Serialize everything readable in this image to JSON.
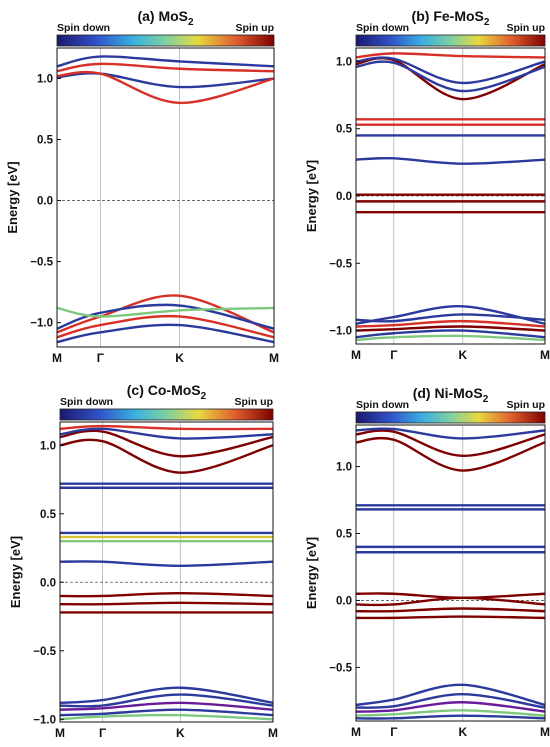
{
  "chart_data": [
    {
      "type": "line",
      "panel_label": "(a)",
      "title": "MoS2",
      "title_main": "MoS",
      "title_sub": "2",
      "colorbar": {
        "left_label": "Spin down",
        "right_label": "Spin up"
      },
      "ylabel": "Energy [eV]",
      "xticks": [
        "M",
        "Γ",
        "K",
        "M"
      ],
      "ylim": [
        -1.2,
        1.25
      ],
      "yticks": [
        1.0,
        0.5,
        0.0,
        -0.5,
        -1.0
      ],
      "ytick_labels": [
        "1.0",
        "0.5",
        "0.0",
        "−0.5",
        "−1.0"
      ],
      "fermi_level": 0.0,
      "bands": [
        {
          "color": "#2b3a9c",
          "values": [
            1.01,
            1.04,
            0.93,
            1.0
          ]
        },
        {
          "color": "#d73027",
          "values": [
            1.02,
            1.04,
            0.8,
            1.0
          ]
        },
        {
          "color": "#d73027",
          "values": [
            1.06,
            1.12,
            1.08,
            1.06
          ]
        },
        {
          "color": "#2b3a9c",
          "values": [
            1.1,
            1.18,
            1.14,
            1.1
          ]
        },
        {
          "color": "#d73027",
          "values": [
            -1.08,
            -0.95,
            -0.78,
            -1.08
          ]
        },
        {
          "color": "#2b3a9c",
          "values": [
            -1.05,
            -0.92,
            -0.86,
            -1.05
          ]
        },
        {
          "color": "#d73027",
          "values": [
            -1.12,
            -1.02,
            -0.95,
            -1.12
          ]
        },
        {
          "color": "#2b3a9c",
          "values": [
            -1.16,
            -1.08,
            -1.02,
            -1.16
          ]
        },
        {
          "color": "#7fc97f",
          "values": [
            -0.88,
            -0.95,
            -0.9,
            -0.88
          ]
        }
      ]
    },
    {
      "type": "line",
      "panel_label": "(b)",
      "title": "Fe-MoS2",
      "title_main": "Fe-MoS",
      "title_sub": "2",
      "colorbar": {
        "left_label": "Spin down",
        "right_label": "Spin up"
      },
      "ylabel": "Energy [eV]",
      "xticks": [
        "M",
        "Γ",
        "K",
        "M"
      ],
      "ylim": [
        -1.1,
        1.1
      ],
      "yticks": [
        1.0,
        0.5,
        0.0,
        -0.5,
        -1.0
      ],
      "ytick_labels": [
        "1.0",
        "0.5",
        "0.0",
        "−0.5",
        "−1.0"
      ],
      "fermi_level": 0.0,
      "bands": [
        {
          "color": "#7f0000",
          "values": [
            0.98,
            1.01,
            0.72,
            0.98
          ]
        },
        {
          "color": "#2b3a9c",
          "values": [
            1.0,
            1.02,
            0.84,
            1.0
          ]
        },
        {
          "color": "#d73027",
          "values": [
            1.03,
            1.06,
            1.04,
            1.03
          ]
        },
        {
          "color": "#2b3a9c",
          "values": [
            0.96,
            0.99,
            0.78,
            0.96
          ]
        },
        {
          "color": "#d73027",
          "values": [
            0.57,
            0.57,
            0.57,
            0.57
          ]
        },
        {
          "color": "#d73027",
          "values": [
            0.53,
            0.53,
            0.53,
            0.53
          ]
        },
        {
          "color": "#2b3a9c",
          "values": [
            0.45,
            0.45,
            0.45,
            0.45
          ]
        },
        {
          "color": "#2b3a9c",
          "values": [
            0.27,
            0.28,
            0.24,
            0.27
          ]
        },
        {
          "color": "#7f0000",
          "values": [
            0.01,
            0.01,
            0.01,
            0.01
          ]
        },
        {
          "color": "#7f0000",
          "values": [
            -0.04,
            -0.04,
            -0.04,
            -0.04
          ]
        },
        {
          "color": "#7f0000",
          "values": [
            -0.12,
            -0.12,
            -0.12,
            -0.12
          ]
        },
        {
          "color": "#2b3a9c",
          "values": [
            -0.95,
            -0.9,
            -0.82,
            -0.95
          ]
        },
        {
          "color": "#2b3a9c",
          "values": [
            -0.92,
            -0.93,
            -0.88,
            -0.92
          ]
        },
        {
          "color": "#d73027",
          "values": [
            -0.97,
            -0.96,
            -0.93,
            -0.97
          ]
        },
        {
          "color": "#7f0000",
          "values": [
            -1.0,
            -0.99,
            -0.97,
            -1.0
          ]
        },
        {
          "color": "#2b3a9c",
          "values": [
            -1.05,
            -1.02,
            -1.0,
            -1.05
          ]
        },
        {
          "color": "#7fc97f",
          "values": [
            -1.07,
            -1.05,
            -1.04,
            -1.07
          ]
        }
      ]
    },
    {
      "type": "line",
      "panel_label": "(c)",
      "title": "Co-MoS2",
      "title_main": "Co-MoS",
      "title_sub": "2",
      "colorbar": {
        "left_label": "Spin down",
        "right_label": "Spin up"
      },
      "ylabel": "Energy [eV]",
      "xticks": [
        "M",
        "Γ",
        "K",
        "M"
      ],
      "ylim": [
        -1.02,
        1.17
      ],
      "yticks": [
        1.0,
        0.5,
        0.0,
        -0.5,
        -1.0
      ],
      "ytick_labels": [
        "1.0",
        "0.5",
        "0.0",
        "−0.5",
        "−1.0"
      ],
      "fermi_level": 0.0,
      "bands": [
        {
          "color": "#7f0000",
          "values": [
            1.0,
            1.03,
            0.8,
            1.0
          ]
        },
        {
          "color": "#7f0000",
          "values": [
            1.06,
            1.1,
            0.92,
            1.06
          ]
        },
        {
          "color": "#2b3a9c",
          "values": [
            1.08,
            1.12,
            1.05,
            1.08
          ]
        },
        {
          "color": "#d73027",
          "values": [
            1.12,
            1.14,
            1.12,
            1.12
          ]
        },
        {
          "color": "#2b3a9c",
          "values": [
            0.72,
            0.72,
            0.72,
            0.72
          ]
        },
        {
          "color": "#2b3a9c",
          "values": [
            0.69,
            0.69,
            0.69,
            0.69
          ]
        },
        {
          "color": "#2b3a9c",
          "values": [
            0.36,
            0.36,
            0.36,
            0.36
          ]
        },
        {
          "color": "#d7c43a",
          "values": [
            0.33,
            0.33,
            0.33,
            0.33
          ]
        },
        {
          "color": "#7fc97f",
          "values": [
            0.3,
            0.3,
            0.3,
            0.3
          ]
        },
        {
          "color": "#2b3a9c",
          "values": [
            0.15,
            0.15,
            0.12,
            0.15
          ]
        },
        {
          "color": "#7f0000",
          "values": [
            -0.1,
            -0.1,
            -0.08,
            -0.1
          ]
        },
        {
          "color": "#7f0000",
          "values": [
            -0.16,
            -0.16,
            -0.15,
            -0.16
          ]
        },
        {
          "color": "#7f0000",
          "values": [
            -0.22,
            -0.22,
            -0.22,
            -0.22
          ]
        },
        {
          "color": "#2b3a9c",
          "values": [
            -0.88,
            -0.86,
            -0.77,
            -0.88
          ]
        },
        {
          "color": "#2b3a9c",
          "values": [
            -0.9,
            -0.9,
            -0.82,
            -0.9
          ]
        },
        {
          "color": "#6a1b9a",
          "values": [
            -0.93,
            -0.92,
            -0.88,
            -0.93
          ]
        },
        {
          "color": "#2b3a9c",
          "values": [
            -0.97,
            -0.96,
            -0.93,
            -0.97
          ]
        },
        {
          "color": "#7fc97f",
          "values": [
            -1.0,
            -0.98,
            -0.97,
            -1.0
          ]
        }
      ]
    },
    {
      "type": "line",
      "panel_label": "(d)",
      "title": "Ni-MoS2",
      "title_main": "Ni-MoS",
      "title_sub": "2",
      "colorbar": {
        "left_label": "Spin down",
        "right_label": "Spin up"
      },
      "ylabel": "Energy [eV]",
      "xticks": [
        "M",
        "Γ",
        "K",
        "M"
      ],
      "ylim": [
        -0.9,
        1.31
      ],
      "yticks": [
        1.0,
        0.5,
        0.0,
        -0.5
      ],
      "ytick_labels": [
        "1.0",
        "0.5",
        "0.0",
        "−0.5"
      ],
      "fermi_level": 0.0,
      "bands": [
        {
          "color": "#7f0000",
          "values": [
            1.18,
            1.2,
            0.97,
            1.18
          ]
        },
        {
          "color": "#7f0000",
          "values": [
            1.24,
            1.26,
            1.08,
            1.24
          ]
        },
        {
          "color": "#2b3a9c",
          "values": [
            1.27,
            1.28,
            1.21,
            1.27
          ]
        },
        {
          "color": "#2b3a9c",
          "values": [
            0.71,
            0.71,
            0.71,
            0.71
          ]
        },
        {
          "color": "#2b3a9c",
          "values": [
            0.68,
            0.68,
            0.68,
            0.68
          ]
        },
        {
          "color": "#2b3a9c",
          "values": [
            0.4,
            0.4,
            0.4,
            0.4
          ]
        },
        {
          "color": "#2b3a9c",
          "values": [
            0.36,
            0.36,
            0.36,
            0.36
          ]
        },
        {
          "color": "#7f0000",
          "values": [
            0.05,
            0.05,
            0.02,
            0.05
          ]
        },
        {
          "color": "#7f0000",
          "values": [
            -0.03,
            -0.03,
            0.02,
            -0.03
          ]
        },
        {
          "color": "#7f0000",
          "values": [
            -0.08,
            -0.08,
            -0.06,
            -0.08
          ]
        },
        {
          "color": "#7f0000",
          "values": [
            -0.13,
            -0.13,
            -0.12,
            -0.13
          ]
        },
        {
          "color": "#2b3a9c",
          "values": [
            -0.78,
            -0.74,
            -0.63,
            -0.78
          ]
        },
        {
          "color": "#2b3a9c",
          "values": [
            -0.8,
            -0.79,
            -0.7,
            -0.8
          ]
        },
        {
          "color": "#6a1b9a",
          "values": [
            -0.83,
            -0.82,
            -0.76,
            -0.83
          ]
        },
        {
          "color": "#7fc97f",
          "values": [
            -0.86,
            -0.85,
            -0.82,
            -0.86
          ]
        },
        {
          "color": "#2b3a9c",
          "values": [
            -0.88,
            -0.88,
            -0.86,
            -0.88
          ]
        }
      ]
    }
  ],
  "colors": {
    "spin_down": "#2b3a9c",
    "spin_up": "#7f0000",
    "fermi_line": "#555555",
    "kpath_line": "#b0b0b0"
  }
}
